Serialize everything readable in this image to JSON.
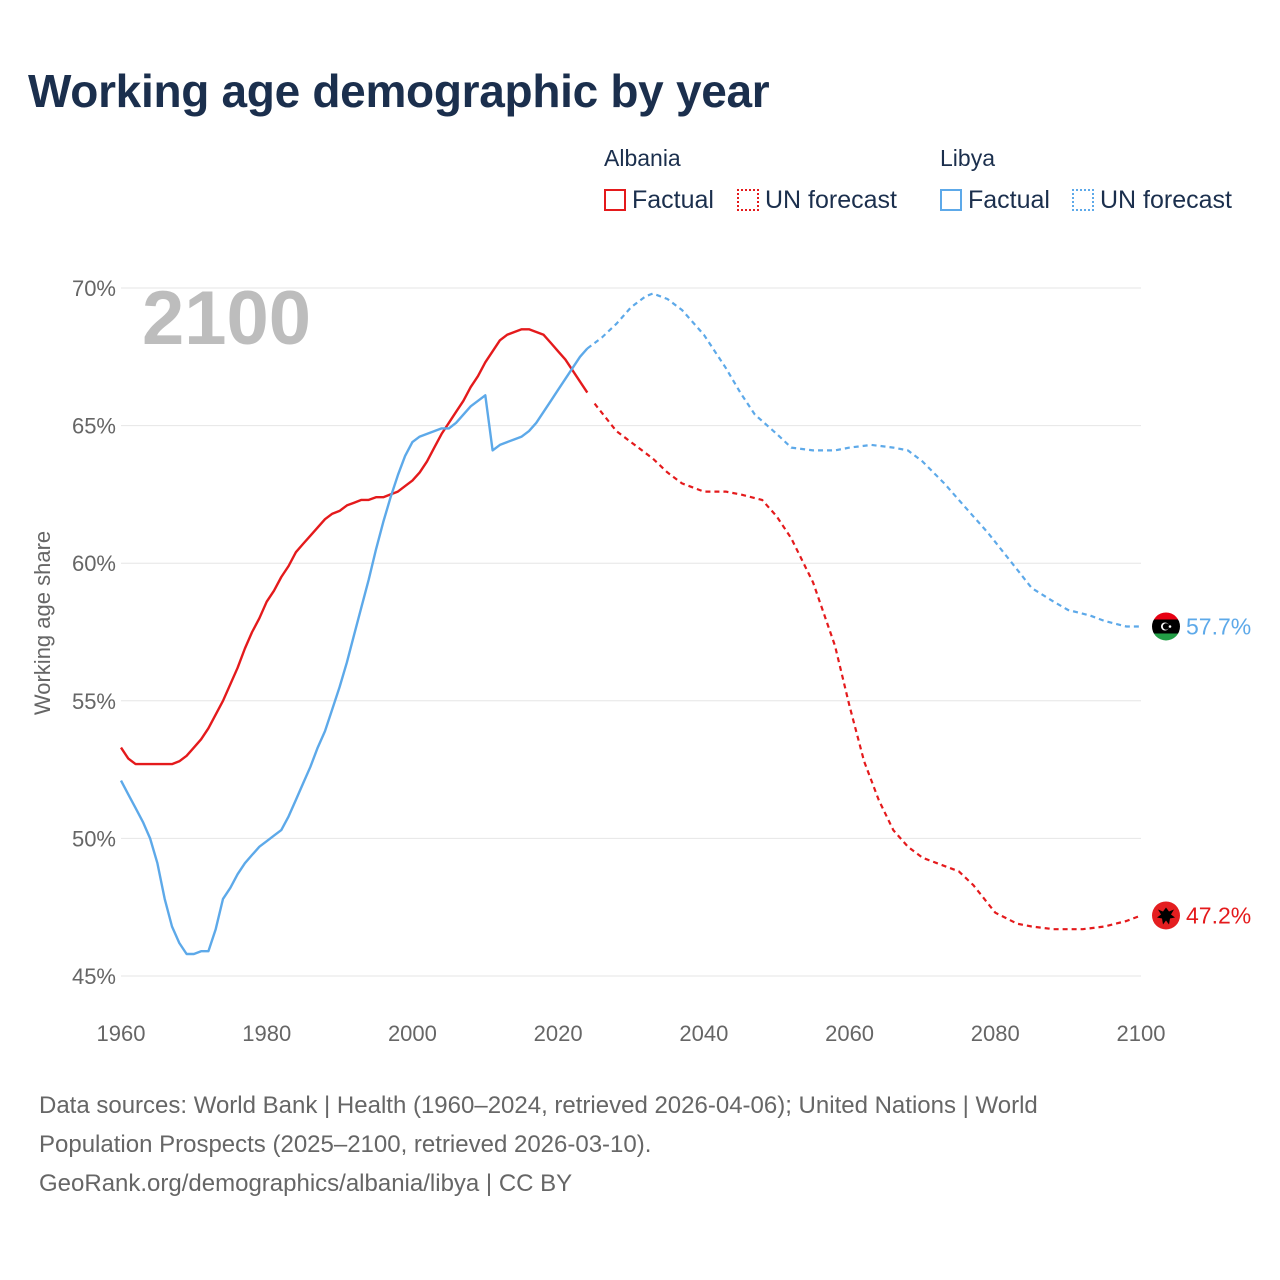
{
  "title": "Working age demographic by year",
  "legend": {
    "groups": [
      {
        "country": "Albania",
        "color": "#e41a1c",
        "factual_label": "Factual",
        "forecast_label": "UN forecast"
      },
      {
        "country": "Libya",
        "color": "#5da9e9",
        "factual_label": "Factual",
        "forecast_label": "UN forecast"
      }
    ]
  },
  "footer": {
    "line1": "Data sources: World Bank | Health (1960–2024, retrieved 2026-04-06); United Nations | World",
    "line2": "Population Prospects (2025–2100, retrieved 2026-03-10).",
    "line3": "GeoRank.org/demographics/albania/libya | CC BY"
  },
  "chart_data": {
    "type": "line",
    "title": "Working age demographic by year",
    "year_display": "2100",
    "ylabel": "Working age share",
    "xlabel": "",
    "xlim": [
      1960,
      2100
    ],
    "ylim": [
      45,
      70
    ],
    "x_ticks": [
      1960,
      1980,
      2000,
      2020,
      2040,
      2060,
      2080,
      2100
    ],
    "x_tick_labels": [
      "1960",
      "1980",
      "2000",
      "2020",
      "2040",
      "2060",
      "2080",
      "2100"
    ],
    "y_ticks": [
      45,
      50,
      55,
      60,
      65,
      70
    ],
    "y_tick_labels": [
      "45%",
      "50%",
      "55%",
      "60%",
      "65%",
      "70%"
    ],
    "grid": true,
    "series": [
      {
        "name": "Albania",
        "color": "#e41a1c",
        "end_label": "47.2%",
        "factual": {
          "x": [
            1960,
            1961,
            1962,
            1963,
            1964,
            1965,
            1966,
            1967,
            1968,
            1969,
            1970,
            1971,
            1972,
            1973,
            1974,
            1975,
            1976,
            1977,
            1978,
            1979,
            1980,
            1981,
            1982,
            1983,
            1984,
            1985,
            1986,
            1987,
            1988,
            1989,
            1990,
            1991,
            1992,
            1993,
            1994,
            1995,
            1996,
            1997,
            1998,
            1999,
            2000,
            2001,
            2002,
            2003,
            2004,
            2005,
            2006,
            2007,
            2008,
            2009,
            2010,
            2011,
            2012,
            2013,
            2014,
            2015,
            2016,
            2017,
            2018,
            2019,
            2020,
            2021,
            2022,
            2023,
            2024
          ],
          "y": [
            53.3,
            52.9,
            52.7,
            52.7,
            52.7,
            52.7,
            52.7,
            52.7,
            52.8,
            53.0,
            53.3,
            53.6,
            54.0,
            54.5,
            55.0,
            55.6,
            56.2,
            56.9,
            57.5,
            58.0,
            58.6,
            59.0,
            59.5,
            59.9,
            60.4,
            60.7,
            61.0,
            61.3,
            61.6,
            61.8,
            61.9,
            62.1,
            62.2,
            62.3,
            62.3,
            62.4,
            62.4,
            62.5,
            62.6,
            62.8,
            63.0,
            63.3,
            63.7,
            64.2,
            64.7,
            65.1,
            65.5,
            65.9,
            66.4,
            66.8,
            67.3,
            67.7,
            68.1,
            68.3,
            68.4,
            68.5,
            68.5,
            68.4,
            68.3,
            68.0,
            67.7,
            67.4,
            67.0,
            66.6,
            66.2
          ]
        },
        "forecast": {
          "x": [
            2025,
            2028,
            2030,
            2033,
            2035,
            2037,
            2040,
            2043,
            2045,
            2048,
            2050,
            2052,
            2055,
            2058,
            2060,
            2062,
            2064,
            2066,
            2068,
            2070,
            2072,
            2075,
            2077,
            2080,
            2083,
            2085,
            2088,
            2090,
            2092,
            2095,
            2098,
            2100
          ],
          "y": [
            65.8,
            64.8,
            64.4,
            63.8,
            63.3,
            62.9,
            62.6,
            62.6,
            62.5,
            62.3,
            61.7,
            60.9,
            59.3,
            57.0,
            54.8,
            52.8,
            51.4,
            50.3,
            49.7,
            49.3,
            49.1,
            48.8,
            48.3,
            47.3,
            46.9,
            46.8,
            46.7,
            46.7,
            46.7,
            46.8,
            47.0,
            47.2
          ]
        }
      },
      {
        "name": "Libya",
        "color": "#5da9e9",
        "end_label": "57.7%",
        "factual": {
          "x": [
            1960,
            1961,
            1962,
            1963,
            1964,
            1965,
            1966,
            1967,
            1968,
            1969,
            1970,
            1971,
            1972,
            1973,
            1974,
            1975,
            1976,
            1977,
            1978,
            1979,
            1980,
            1981,
            1982,
            1983,
            1984,
            1985,
            1986,
            1987,
            1988,
            1989,
            1990,
            1991,
            1992,
            1993,
            1994,
            1995,
            1996,
            1997,
            1998,
            1999,
            2000,
            2001,
            2002,
            2003,
            2004,
            2005,
            2006,
            2007,
            2008,
            2009,
            2010,
            2011,
            2012,
            2013,
            2014,
            2015,
            2016,
            2017,
            2018,
            2019,
            2020,
            2021,
            2022,
            2023,
            2024
          ],
          "y": [
            52.1,
            51.6,
            51.1,
            50.6,
            50.0,
            49.1,
            47.8,
            46.8,
            46.2,
            45.8,
            45.8,
            45.9,
            45.9,
            46.7,
            47.8,
            48.2,
            48.7,
            49.1,
            49.4,
            49.7,
            49.9,
            50.1,
            50.3,
            50.8,
            51.4,
            52.0,
            52.6,
            53.3,
            53.9,
            54.7,
            55.5,
            56.4,
            57.4,
            58.4,
            59.4,
            60.5,
            61.5,
            62.4,
            63.2,
            63.9,
            64.4,
            64.6,
            64.7,
            64.8,
            64.9,
            64.9,
            65.1,
            65.4,
            65.7,
            65.9,
            66.1,
            64.1,
            64.3,
            64.4,
            64.5,
            64.6,
            64.8,
            65.1,
            65.5,
            65.9,
            66.3,
            66.7,
            67.1,
            67.5,
            67.8
          ]
        },
        "forecast": {
          "x": [
            2024,
            2026,
            2028,
            2030,
            2032,
            2033,
            2035,
            2037,
            2040,
            2043,
            2045,
            2047,
            2050,
            2052,
            2055,
            2058,
            2060,
            2063,
            2066,
            2068,
            2070,
            2073,
            2076,
            2079,
            2082,
            2085,
            2088,
            2090,
            2093,
            2095,
            2098,
            2100
          ],
          "y": [
            67.8,
            68.2,
            68.7,
            69.3,
            69.7,
            69.8,
            69.6,
            69.2,
            68.3,
            67.1,
            66.2,
            65.4,
            64.7,
            64.2,
            64.1,
            64.1,
            64.2,
            64.3,
            64.2,
            64.1,
            63.7,
            62.9,
            62.0,
            61.1,
            60.1,
            59.1,
            58.6,
            58.3,
            58.1,
            57.9,
            57.7,
            57.7
          ]
        }
      }
    ]
  }
}
